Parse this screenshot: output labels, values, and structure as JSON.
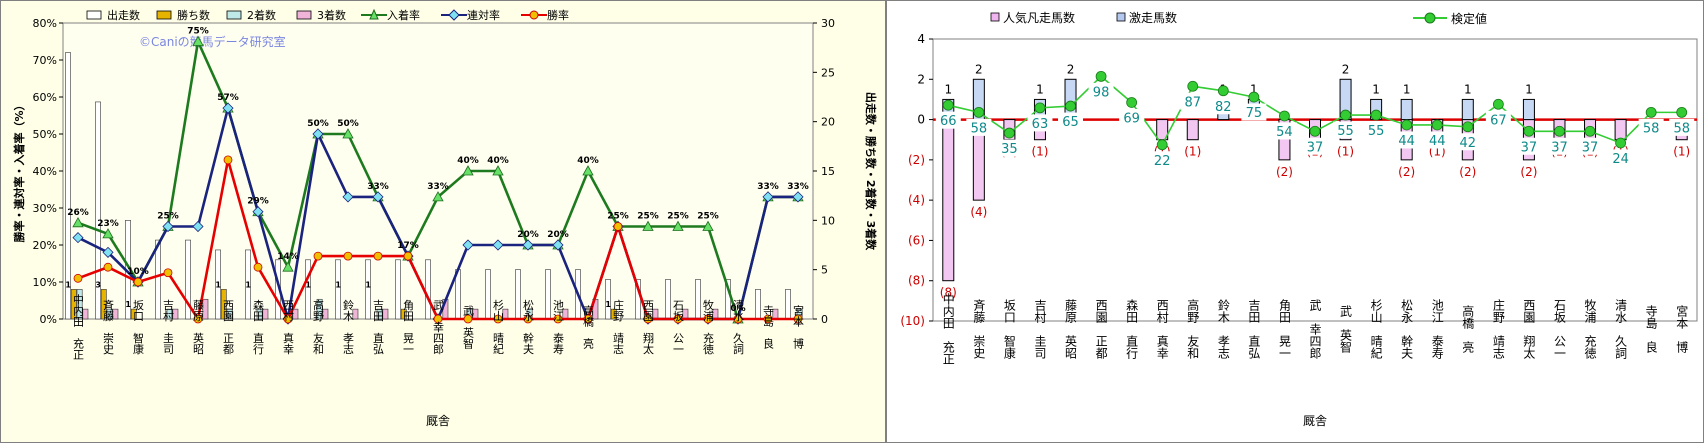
{
  "chart_data": [
    {
      "type": "bar+line",
      "categories": [
        "中内田 充正",
        "斉藤 崇史",
        "坂口 智康",
        "吉村 圭司",
        "藤原 英昭",
        "西園 正都",
        "森田 直行",
        "西村 真幸",
        "高野 友和",
        "鈴木 孝志",
        "吉田 直弘",
        "角田 晃一",
        "武 幸四郎",
        "武 英智",
        "杉山 晴紀",
        "松永 幹夫",
        "池江 泰寿",
        "高橋 亮",
        "庄野 靖志",
        "西園 翔太",
        "石坂 公一",
        "牧浦 充徳",
        "清水 久詞",
        "寺島 良",
        "宮本 博"
      ],
      "series": [
        {
          "name": "出走数",
          "axis": "right",
          "kind": "bar",
          "color": "#ffffff",
          "values": [
            27,
            22,
            10,
            8,
            8,
            7,
            7,
            6,
            6,
            6,
            6,
            6,
            6,
            5,
            5,
            5,
            5,
            5,
            4,
            4,
            4,
            4,
            4,
            3,
            3
          ]
        },
        {
          "name": "勝ち数",
          "axis": "right",
          "kind": "bar",
          "color": "#e6b400",
          "values": [
            3,
            3,
            1,
            0,
            0,
            3,
            0,
            0,
            0,
            0,
            0,
            1,
            0,
            0,
            0,
            0,
            0,
            0,
            1,
            0,
            0,
            0,
            0,
            0,
            0
          ]
        },
        {
          "name": "2着数",
          "axis": "right",
          "kind": "bar",
          "color": "#bfe8e8",
          "values": [
            3,
            1,
            0,
            1,
            0,
            1,
            1,
            0,
            2,
            0,
            1,
            0,
            0,
            1,
            0,
            1,
            0,
            0,
            0,
            0,
            0,
            0,
            0,
            0,
            1
          ]
        },
        {
          "name": "3着数",
          "axis": "right",
          "kind": "bar",
          "color": "#f0b4d8",
          "values": [
            1,
            1,
            0,
            1,
            2,
            0,
            1,
            1,
            1,
            1,
            1,
            0,
            2,
            1,
            1,
            0,
            1,
            2,
            0,
            1,
            1,
            1,
            0,
            1,
            0
          ]
        },
        {
          "name": "入着率",
          "axis": "left",
          "kind": "line",
          "color": "#1e7a1e",
          "marker": "triangle",
          "values": [
            26,
            23,
            10,
            25,
            75,
            57,
            29,
            14,
            50,
            50,
            33,
            17,
            33,
            40,
            40,
            20,
            20,
            40,
            25,
            25,
            25,
            25,
            0,
            33,
            33
          ]
        },
        {
          "name": "連対率",
          "axis": "left",
          "kind": "line",
          "color": "#1a237e",
          "marker": "diamond",
          "values": [
            22,
            18,
            10,
            25,
            25,
            57,
            29,
            0,
            50,
            33,
            33,
            17,
            0,
            20,
            20,
            20,
            20,
            0,
            25,
            0,
            0,
            0,
            0,
            33,
            33
          ]
        },
        {
          "name": "勝率",
          "axis": "left",
          "kind": "line",
          "color": "#e60000",
          "marker": "circle",
          "values": [
            11,
            14,
            10,
            12.5,
            0,
            43,
            14,
            0,
            17,
            17,
            17,
            17,
            0,
            0,
            0,
            0,
            0,
            0,
            25,
            0,
            0,
            0,
            0,
            0,
            0
          ]
        }
      ],
      "bar_labels": [
        "1",
        "3",
        "1",
        "",
        "",
        "1",
        "1",
        "",
        "1",
        "1",
        "1",
        "",
        "",
        "",
        "",
        "",
        "",
        "",
        "1",
        "",
        "",
        "",
        "",
        "",
        ""
      ],
      "rate_labels": [
        "26%",
        "23%",
        "10%",
        "25%",
        "75%",
        "57%",
        "29%",
        "14%",
        "50%",
        "50%",
        "33%",
        "17%",
        "33%",
        "40%",
        "40%",
        "20%",
        "20%",
        "40%",
        "25%",
        "25%",
        "25%",
        "25%",
        "0%",
        "33%",
        "33%"
      ],
      "left_axis": {
        "label": "勝率・連対率・入着率（%）",
        "ticks": [
          "0%",
          "10%",
          "20%",
          "30%",
          "40%",
          "50%",
          "60%",
          "70%",
          "80%"
        ],
        "ylim": [
          0,
          80
        ]
      },
      "right_axis": {
        "label": "出走数・勝ち数・2着数・3着数",
        "ticks": [
          "0",
          "5",
          "10",
          "15",
          "20",
          "25",
          "30"
        ],
        "ylim": [
          0,
          30
        ]
      },
      "xlabel": "厩舎",
      "watermark": "©Caniの競馬データ研究室",
      "grid": false,
      "legend": "top"
    },
    {
      "type": "bar+line",
      "categories": [
        "中内田 充正",
        "斉藤 崇史",
        "坂口 智康",
        "吉村 圭司",
        "藤原 英昭",
        "西園 正都",
        "森田 直行",
        "西村 真幸",
        "高野 友和",
        "鈴木 孝志",
        "吉田 直弘",
        "角田 晃一",
        "武 幸四郎",
        "武 英智",
        "杉山 晴紀",
        "松永 幹夫",
        "池江 泰寿",
        "高橋 亮",
        "庄野 靖志",
        "西園 翔太",
        "石坂 公一",
        "牧浦 充徳",
        "清水 久詞",
        "寺島 良",
        "宮本 博"
      ],
      "series": [
        {
          "name": "人気凡走馬数",
          "kind": "bar",
          "color": "#f0b4f0",
          "values": [
            -8,
            -4,
            -1,
            -1,
            0,
            0,
            0,
            -1,
            -1,
            0,
            0,
            -2,
            -1,
            -1,
            0,
            -2,
            -1,
            -2,
            0,
            -2,
            -1,
            -1,
            -1,
            0,
            -1
          ]
        },
        {
          "name": "激走馬数",
          "kind": "bar",
          "color": "#b4c8f0",
          "values": [
            1,
            2,
            0,
            1,
            2,
            0,
            0,
            0,
            0,
            1,
            1,
            0,
            0,
            2,
            1,
            1,
            0,
            1,
            0,
            1,
            0,
            0,
            0,
            0,
            0
          ]
        },
        {
          "name": "検定値",
          "kind": "line",
          "color": "#33cc33",
          "marker": "circle",
          "values": [
            66,
            58,
            35,
            63,
            65,
            98,
            69,
            22,
            87,
            82,
            75,
            54,
            37,
            55,
            55,
            44,
            44,
            42,
            67,
            37,
            37,
            37,
            24,
            58,
            58
          ]
        }
      ],
      "pos_labels": [
        "1",
        "2",
        "",
        "1",
        "2",
        "",
        "",
        "",
        "",
        "1",
        "1",
        "",
        "",
        "2",
        "1",
        "1",
        "",
        "1",
        "",
        "1",
        "",
        "",
        "",
        "",
        ""
      ],
      "neg_labels": [
        "(8)",
        "(4)",
        "(1)",
        "(1)",
        "",
        "",
        "",
        "(1)",
        "(1)",
        "",
        "",
        "(2)",
        "(1)",
        "(1)",
        "",
        "(2)",
        "(1)",
        "(2)",
        "",
        "(2)",
        "(1)",
        "(1)",
        "(1)",
        "",
        "(1)"
      ],
      "y_ticks": [
        "4",
        "2",
        "0",
        "(2)",
        "(4)",
        "(6)",
        "(8)",
        "(10)"
      ],
      "ylim": [
        -10,
        4
      ],
      "xlabel": "厩舎",
      "grid": false,
      "legend": "top"
    }
  ]
}
